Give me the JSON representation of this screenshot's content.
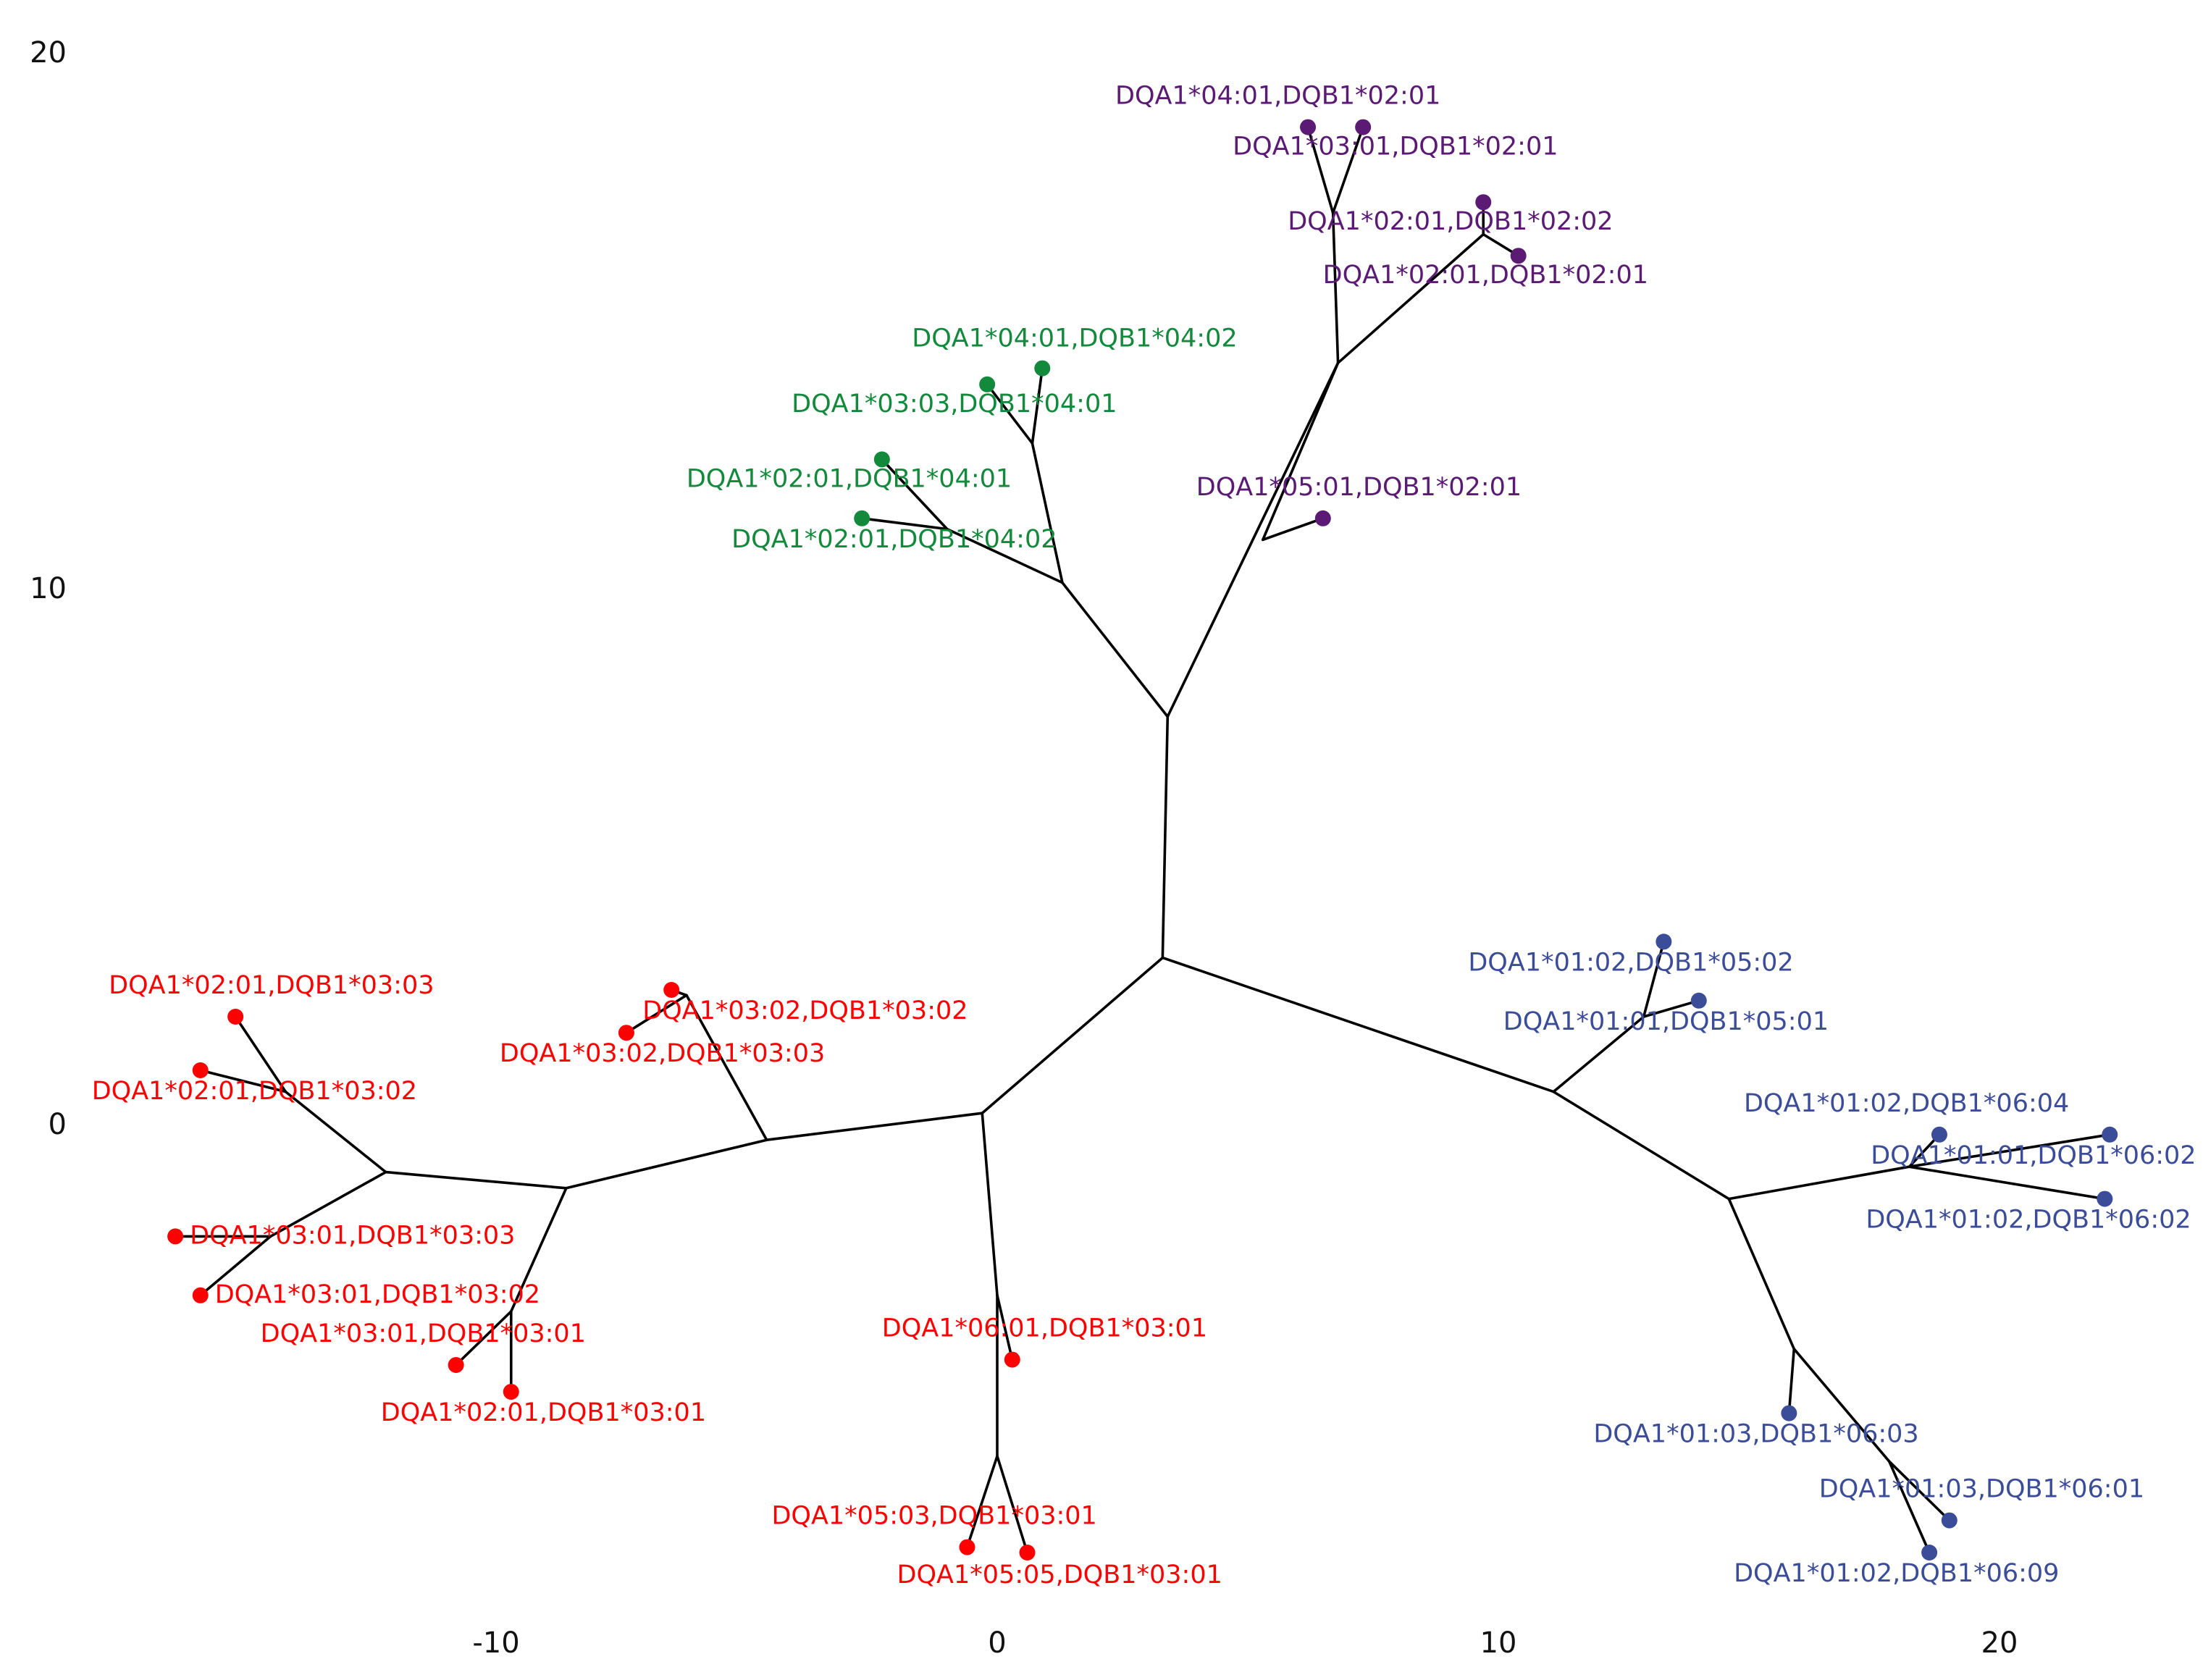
{
  "chart_data": {
    "type": "unrooted_tree",
    "x_ticks": [
      -10,
      0,
      10,
      20
    ],
    "y_ticks": [
      0,
      10,
      20
    ],
    "xlim": [
      -20,
      24.5
    ],
    "ylim": [
      -10.3,
      21.3
    ],
    "grid": false,
    "legend": "none",
    "clusters": [
      {
        "id": "green",
        "color": "#138a3b"
      },
      {
        "id": "purple",
        "color": "#5b1a73"
      },
      {
        "id": "red",
        "color": "#ff0000"
      },
      {
        "id": "blue",
        "color": "#3b4d99"
      }
    ],
    "nodes": [
      {
        "id": "n0",
        "x": 3.3,
        "y": 3.1
      },
      {
        "id": "n1",
        "x": 3.4,
        "y": 7.6
      },
      {
        "id": "n2",
        "x": 1.3,
        "y": 10.1
      },
      {
        "id": "n3",
        "x": 0.7,
        "y": 12.7
      },
      {
        "id": "n4",
        "x": -1.0,
        "y": 11.1
      },
      {
        "id": "n5",
        "x": 6.8,
        "y": 14.2
      },
      {
        "id": "n6",
        "x": 6.7,
        "y": 17.0
      },
      {
        "id": "n7",
        "x": 9.7,
        "y": 16.6
      },
      {
        "id": "n8",
        "x": 5.3,
        "y": 10.9
      },
      {
        "id": "n9",
        "x": -0.3,
        "y": 0.2
      },
      {
        "id": "n10",
        "x": -4.6,
        "y": -0.3
      },
      {
        "id": "n11",
        "x": -6.2,
        "y": 2.4
      },
      {
        "id": "n12",
        "x": -8.6,
        "y": -1.2
      },
      {
        "id": "n13",
        "x": -12.2,
        "y": -0.9
      },
      {
        "id": "n14",
        "x": -14.2,
        "y": 0.6
      },
      {
        "id": "n15",
        "x": -14.5,
        "y": -2.1
      },
      {
        "id": "n16",
        "x": -9.7,
        "y": -3.5
      },
      {
        "id": "n17",
        "x": 0.0,
        "y": -3.2
      },
      {
        "id": "n18",
        "x": 0.0,
        "y": -6.2
      },
      {
        "id": "n19",
        "x": 11.1,
        "y": 0.6
      },
      {
        "id": "n20",
        "x": 12.9,
        "y": 2.0
      },
      {
        "id": "n21",
        "x": 14.6,
        "y": -1.4
      },
      {
        "id": "n22",
        "x": 18.2,
        "y": -0.8
      },
      {
        "id": "n23",
        "x": 15.9,
        "y": -4.2
      },
      {
        "id": "n24",
        "x": 17.8,
        "y": -6.3
      }
    ],
    "leaves": [
      {
        "id": "L1",
        "label": "DQA1*04:01,DQB1*04:02",
        "cluster": "green",
        "x": 0.9,
        "y": 14.1
      },
      {
        "id": "L2",
        "label": "DQA1*03:03,DQB1*04:01",
        "cluster": "green",
        "x": -0.2,
        "y": 13.8
      },
      {
        "id": "L3",
        "label": "DQA1*02:01,DQB1*04:01",
        "cluster": "green",
        "x": -2.3,
        "y": 12.4
      },
      {
        "id": "L4",
        "label": "DQA1*02:01,DQB1*04:02",
        "cluster": "green",
        "x": -2.7,
        "y": 11.3
      },
      {
        "id": "L5",
        "label": "DQA1*04:01,DQB1*02:01",
        "cluster": "purple",
        "x": 6.2,
        "y": 18.6
      },
      {
        "id": "L6",
        "label": "DQA1*03:01,DQB1*02:01",
        "cluster": "purple",
        "x": 7.3,
        "y": 18.6
      },
      {
        "id": "L7",
        "label": "DQA1*02:01,DQB1*02:02",
        "cluster": "purple",
        "x": 9.7,
        "y": 17.2
      },
      {
        "id": "L8",
        "label": "DQA1*02:01,DQB1*02:01",
        "cluster": "purple",
        "x": 10.4,
        "y": 16.2
      },
      {
        "id": "L9",
        "label": "DQA1*05:01,DQB1*02:01",
        "cluster": "purple",
        "x": 6.5,
        "y": 11.3
      },
      {
        "id": "L10",
        "label": "DQA1*03:02,DQB1*03:02",
        "cluster": "red",
        "x": -6.5,
        "y": 2.5
      },
      {
        "id": "L11",
        "label": "DQA1*03:02,DQB1*03:03",
        "cluster": "red",
        "x": -7.4,
        "y": 1.7
      },
      {
        "id": "L12",
        "label": "DQA1*02:01,DQB1*03:03",
        "cluster": "red",
        "x": -15.2,
        "y": 2.0
      },
      {
        "id": "L13",
        "label": "DQA1*02:01,DQB1*03:02",
        "cluster": "red",
        "x": -15.9,
        "y": 1.0
      },
      {
        "id": "L14",
        "label": "DQA1*03:01,DQB1*03:03",
        "cluster": "red",
        "x": -16.4,
        "y": -2.1
      },
      {
        "id": "L15",
        "label": "DQA1*03:01,DQB1*03:02",
        "cluster": "red",
        "x": -15.9,
        "y": -3.2
      },
      {
        "id": "L16",
        "label": "DQA1*03:01,DQB1*03:01",
        "cluster": "red",
        "x": -10.8,
        "y": -4.5
      },
      {
        "id": "L17",
        "label": "DQA1*02:01,DQB1*03:01",
        "cluster": "red",
        "x": -9.7,
        "y": -5.0
      },
      {
        "id": "L18",
        "label": "DQA1*06:01,DQB1*03:01",
        "cluster": "red",
        "x": 0.3,
        "y": -4.4
      },
      {
        "id": "L19",
        "label": "DQA1*05:03,DQB1*03:01",
        "cluster": "red",
        "x": -0.6,
        "y": -7.9
      },
      {
        "id": "L20",
        "label": "DQA1*05:05,DQB1*03:01",
        "cluster": "red",
        "x": 0.6,
        "y": -8.0
      },
      {
        "id": "L21",
        "label": "DQA1*01:02,DQB1*05:02",
        "cluster": "blue",
        "x": 13.3,
        "y": 3.4
      },
      {
        "id": "L22",
        "label": "DQA1*01:01,DQB1*05:01",
        "cluster": "blue",
        "x": 14.0,
        "y": 2.3
      },
      {
        "id": "L23",
        "label": "DQA1*01:02,DQB1*06:04",
        "cluster": "blue",
        "x": 18.8,
        "y": -0.2
      },
      {
        "id": "L24",
        "label": "DQA1*01:01,DQB1*06:02",
        "cluster": "blue",
        "x": 22.2,
        "y": -0.2
      },
      {
        "id": "L25",
        "label": "DQA1*01:02,DQB1*06:02",
        "cluster": "blue",
        "x": 22.1,
        "y": -1.4
      },
      {
        "id": "L26",
        "label": "DQA1*01:03,DQB1*06:03",
        "cluster": "blue",
        "x": 15.8,
        "y": -5.4
      },
      {
        "id": "L27",
        "label": "DQA1*01:03,DQB1*06:01",
        "cluster": "blue",
        "x": 19.0,
        "y": -7.4
      },
      {
        "id": "L28",
        "label": "DQA1*01:02,DQB1*06:09",
        "cluster": "blue",
        "x": 18.6,
        "y": -8.0
      }
    ],
    "edges": [
      [
        "n0",
        "n1"
      ],
      [
        "n1",
        "n2"
      ],
      [
        "n2",
        "n3"
      ],
      [
        "n3",
        "L1"
      ],
      [
        "n3",
        "L2"
      ],
      [
        "n2",
        "n4"
      ],
      [
        "n4",
        "L3"
      ],
      [
        "n4",
        "L4"
      ],
      [
        "n1",
        "n5"
      ],
      [
        "n5",
        "n6"
      ],
      [
        "n6",
        "L5"
      ],
      [
        "n6",
        "L6"
      ],
      [
        "n5",
        "n7"
      ],
      [
        "n7",
        "L7"
      ],
      [
        "n7",
        "L8"
      ],
      [
        "n5",
        "n8"
      ],
      [
        "n8",
        "L9"
      ],
      [
        "n0",
        "n9"
      ],
      [
        "n9",
        "n10"
      ],
      [
        "n10",
        "n11"
      ],
      [
        "n11",
        "L10"
      ],
      [
        "n11",
        "L11"
      ],
      [
        "n10",
        "n12"
      ],
      [
        "n12",
        "n13"
      ],
      [
        "n13",
        "n14"
      ],
      [
        "n14",
        "L12"
      ],
      [
        "n14",
        "L13"
      ],
      [
        "n13",
        "n15"
      ],
      [
        "n15",
        "L14"
      ],
      [
        "n15",
        "L15"
      ],
      [
        "n12",
        "n16"
      ],
      [
        "n16",
        "L16"
      ],
      [
        "n16",
        "L17"
      ],
      [
        "n9",
        "n17"
      ],
      [
        "n17",
        "L18"
      ],
      [
        "n17",
        "n18"
      ],
      [
        "n18",
        "L19"
      ],
      [
        "n18",
        "L20"
      ],
      [
        "n0",
        "n19"
      ],
      [
        "n19",
        "n20"
      ],
      [
        "n20",
        "L21"
      ],
      [
        "n20",
        "L22"
      ],
      [
        "n19",
        "n21"
      ],
      [
        "n21",
        "n22"
      ],
      [
        "n22",
        "L23"
      ],
      [
        "n22",
        "L24"
      ],
      [
        "n22",
        "L25"
      ],
      [
        "n21",
        "n23"
      ],
      [
        "n23",
        "L26"
      ],
      [
        "n23",
        "n24"
      ],
      [
        "n24",
        "L27"
      ],
      [
        "n24",
        "L28"
      ]
    ]
  }
}
